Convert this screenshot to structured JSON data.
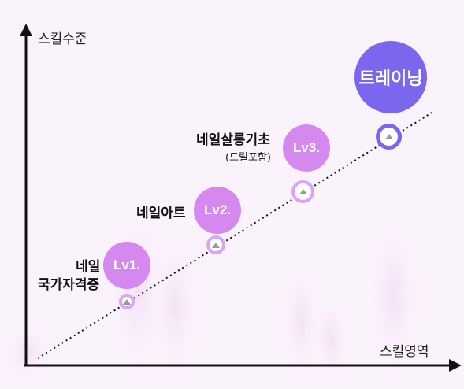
{
  "axes": {
    "y_label": "스킬수준",
    "x_label": "스킬영역"
  },
  "steps": [
    {
      "level": "Lv1.",
      "name_line1": "네일",
      "name_line2": "국가자격증"
    },
    {
      "level": "Lv2.",
      "name": "네일아트"
    },
    {
      "level": "Lv3.",
      "name": "네일살롱기초",
      "note": "(드릴포함)"
    }
  ],
  "final": {
    "label": "트레이닝"
  },
  "colors": {
    "level_circle": "#d589ef",
    "final_circle": "#7b66ee",
    "final_marker_ring": "#7b66ee",
    "marker_ring": "#dba6f1"
  }
}
